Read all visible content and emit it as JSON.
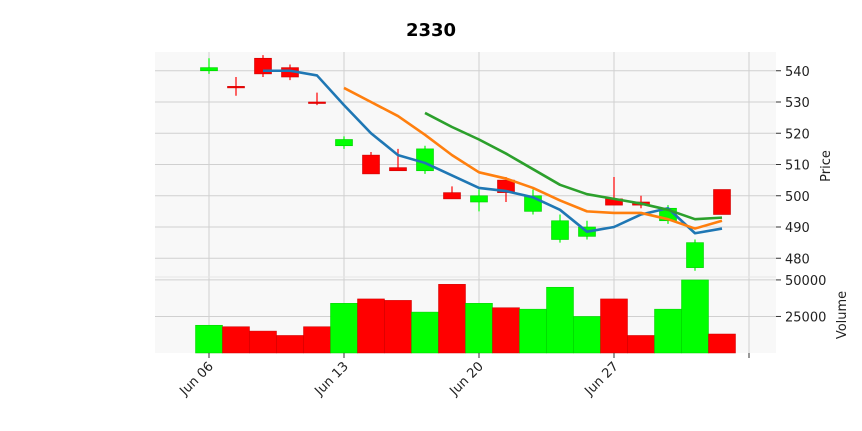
{
  "chart_data": {
    "type": "candlestick",
    "title": "2330",
    "price_axis_label": "Price",
    "volume_axis_label": "Volume",
    "price_ylim": [
      474,
      546
    ],
    "price_ticks": [
      480,
      490,
      500,
      510,
      520,
      530,
      540
    ],
    "volume_ylim": [
      0,
      52000
    ],
    "volume_ticks": [
      25000,
      50000
    ],
    "volume_tick_labels": [
      "25000",
      "50000"
    ],
    "x_tick_labels": [
      "Jun 06",
      "Jun 13",
      "Jun 20",
      "Jun 27"
    ],
    "x_tick_positions": [
      0,
      5,
      10,
      15,
      20
    ],
    "grid": true,
    "colors": {
      "up": "#ff0000",
      "down": "#00ff00",
      "ma5": "#1f77b4",
      "ma10": "#ff7f0e",
      "ma20": "#2ca02c",
      "panel_bg": "#f8f8f8",
      "grid": "#d0d0d0"
    },
    "candles": [
      {
        "open": 541,
        "high": 544,
        "low": 539,
        "close": 540,
        "volume": 19000
      },
      {
        "open": 535,
        "high": 538,
        "low": 532,
        "close": 535,
        "volume": 18000
      },
      {
        "open": 539,
        "high": 545,
        "low": 538,
        "close": 544,
        "volume": 15000
      },
      {
        "open": 538,
        "high": 542,
        "low": 537,
        "close": 541,
        "volume": 12000
      },
      {
        "open": 530,
        "high": 533,
        "low": 529,
        "close": 530,
        "volume": 18000
      },
      {
        "open": 518,
        "high": 519,
        "low": 515,
        "close": 516,
        "volume": 34000
      },
      {
        "open": 507,
        "high": 514,
        "low": 507,
        "close": 513,
        "volume": 37000
      },
      {
        "open": 508,
        "high": 515,
        "low": 508,
        "close": 509,
        "volume": 36000
      },
      {
        "open": 515,
        "high": 516,
        "low": 507,
        "close": 508,
        "volume": 28000
      },
      {
        "open": 499,
        "high": 503,
        "low": 499,
        "close": 501,
        "volume": 47000
      },
      {
        "open": 500,
        "high": 502,
        "low": 495,
        "close": 498,
        "volume": 34000
      },
      {
        "open": 501,
        "high": 506,
        "low": 498,
        "close": 505,
        "volume": 31000
      },
      {
        "open": 500,
        "high": 502,
        "low": 494,
        "close": 495,
        "volume": 30000
      },
      {
        "open": 492,
        "high": 494,
        "low": 485,
        "close": 486,
        "volume": 45000
      },
      {
        "open": 490,
        "high": 492,
        "low": 486,
        "close": 487,
        "volume": 25000
      },
      {
        "open": 497,
        "high": 506,
        "low": 497,
        "close": 499,
        "volume": 37000
      },
      {
        "open": 497,
        "high": 500,
        "low": 496,
        "close": 498,
        "volume": 12000
      },
      {
        "open": 496,
        "high": 497,
        "low": 491,
        "close": 492,
        "volume": 30000
      },
      {
        "open": 485,
        "high": 486,
        "low": 476,
        "close": 477,
        "volume": 50000
      },
      {
        "open": 494,
        "high": 502,
        "low": 494,
        "close": 502,
        "volume": 13000
      }
    ],
    "moving_averages": [
      {
        "key": "ma5",
        "start_index": 2,
        "values": [
          540,
          540,
          538.5,
          529,
          520,
          513,
          510.5,
          506.5,
          502.5,
          501.5,
          499.5,
          495.5,
          488.5,
          490,
          494,
          496,
          488,
          489.5
        ]
      },
      {
        "key": "ma10",
        "start_index": 5,
        "values": [
          534.5,
          530,
          525.5,
          519.5,
          513,
          507.5,
          505.5,
          502.5,
          498.5,
          495,
          494.5,
          494.5,
          492.5,
          489.5,
          492
        ]
      },
      {
        "key": "ma20",
        "start_index": 8,
        "values": [
          526.5,
          522,
          518,
          513.5,
          508.5,
          503.5,
          500.5,
          499,
          497.5,
          495.5,
          492.5,
          493
        ]
      }
    ]
  }
}
